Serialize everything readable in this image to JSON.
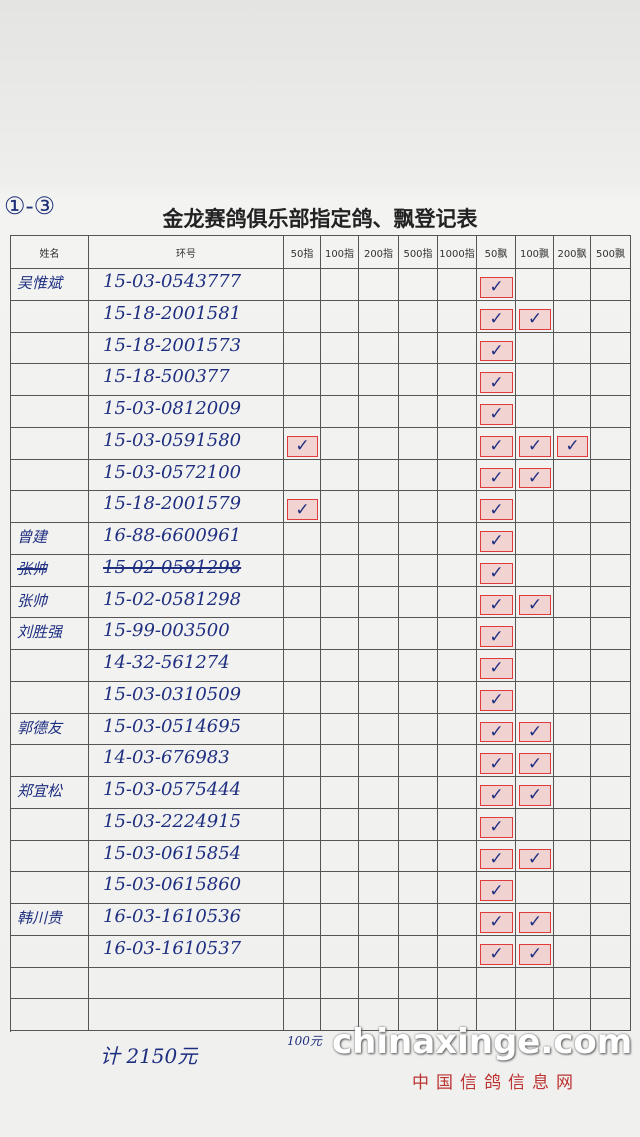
{
  "corner_label": "①-③",
  "title": "金龙赛鸽俱乐部指定鸽、飘登记表",
  "table": {
    "headers": [
      "姓名",
      "环号",
      "50指",
      "100指",
      "200指",
      "500指",
      "1000指",
      "50飘",
      "100飘",
      "200飘",
      "500飘"
    ],
    "rows": [
      {
        "name": "吴惟斌",
        "ring": "15-03-0543777",
        "marks": [
          null,
          null,
          null,
          null,
          null,
          "✓",
          null,
          null,
          null
        ]
      },
      {
        "ring": "15-18-2001581",
        "marks": [
          null,
          null,
          null,
          null,
          null,
          "✓",
          "✓",
          null,
          null
        ]
      },
      {
        "ring": "15-18-2001573",
        "marks": [
          null,
          null,
          null,
          null,
          null,
          "✓",
          null,
          null,
          null
        ]
      },
      {
        "ring": "15-18-500377",
        "marks": [
          null,
          null,
          null,
          null,
          null,
          "✓",
          null,
          null,
          null
        ]
      },
      {
        "ring": "15-03-0812009",
        "marks": [
          null,
          null,
          null,
          null,
          null,
          "✓",
          null,
          null,
          null
        ]
      },
      {
        "ring": "15-03-0591580",
        "marks": [
          "✓",
          null,
          null,
          null,
          null,
          "✓",
          "✓",
          "✓",
          null
        ]
      },
      {
        "ring": "15-03-0572100",
        "marks": [
          null,
          null,
          null,
          null,
          null,
          "✓",
          "✓",
          null,
          null
        ]
      },
      {
        "ring": "15-18-2001579",
        "marks": [
          "✓",
          null,
          null,
          null,
          null,
          "✓",
          null,
          null,
          null
        ]
      },
      {
        "name": "曾建",
        "ring": "16-88-6600961",
        "marks": [
          null,
          null,
          null,
          null,
          null,
          "✓",
          null,
          null,
          null
        ]
      },
      {
        "name": "张帅",
        "ring": "15-02-0581298",
        "struck": true,
        "marks": [
          null,
          null,
          null,
          null,
          null,
          "✓",
          null,
          null,
          null
        ]
      },
      {
        "name": "张帅",
        "ring": "15-02-0581298",
        "marks": [
          null,
          null,
          null,
          null,
          null,
          "✓",
          "✓",
          null,
          null
        ]
      },
      {
        "name": "刘胜强",
        "ring": "15-99-003500",
        "marks": [
          null,
          null,
          null,
          null,
          null,
          "✓",
          null,
          null,
          null
        ]
      },
      {
        "ring": "14-32-561274",
        "marks": [
          null,
          null,
          null,
          null,
          null,
          "✓",
          null,
          null,
          null
        ]
      },
      {
        "ring": "15-03-0310509",
        "marks": [
          null,
          null,
          null,
          null,
          null,
          "✓",
          null,
          null,
          null
        ]
      },
      {
        "name": "郭德友",
        "ring": "15-03-0514695",
        "marks": [
          null,
          null,
          null,
          null,
          null,
          "✓",
          "✓",
          null,
          null
        ]
      },
      {
        "ring": "14-03-676983",
        "marks": [
          null,
          null,
          null,
          null,
          null,
          "✓",
          "✓",
          null,
          null
        ]
      },
      {
        "name": "郑宜松",
        "ring": "15-03-0575444",
        "marks": [
          null,
          null,
          null,
          null,
          null,
          "✓",
          "✓",
          null,
          null
        ]
      },
      {
        "ring": "15-03-2224915",
        "marks": [
          null,
          null,
          null,
          null,
          null,
          "✓",
          null,
          null,
          null
        ]
      },
      {
        "ring": "15-03-0615854",
        "marks": [
          null,
          null,
          null,
          null,
          null,
          "✓",
          "✓",
          null,
          null
        ]
      },
      {
        "ring": "15-03-0615860",
        "marks": [
          null,
          null,
          null,
          null,
          null,
          "✓",
          null,
          null,
          null
        ]
      },
      {
        "name": "韩川贵",
        "ring": "16-03-1610536",
        "marks": [
          null,
          null,
          null,
          null,
          null,
          "✓",
          "✓",
          null,
          null
        ]
      },
      {
        "ring": "16-03-1610537",
        "marks": [
          null,
          null,
          null,
          null,
          null,
          "✓",
          "✓",
          null,
          null
        ]
      },
      {
        "marks": [
          null,
          null,
          null,
          null,
          null,
          null,
          null,
          null,
          null
        ]
      },
      {
        "marks": [
          null,
          null,
          null,
          null,
          null,
          null,
          null,
          null,
          null
        ]
      }
    ]
  },
  "footer": {
    "total": "计 2150元",
    "note": "100元",
    "watermark": "chinaxinge.com",
    "site": "中国信鸽信息网"
  }
}
